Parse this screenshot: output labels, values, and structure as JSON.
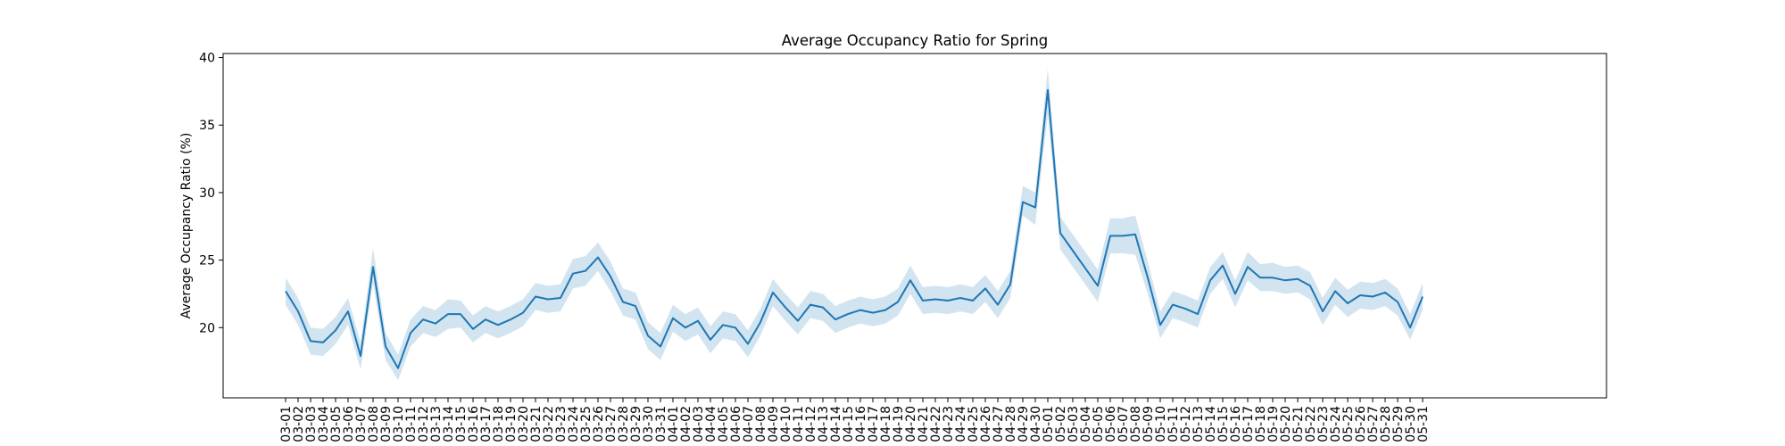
{
  "chart_data": {
    "type": "line",
    "title": "Average Occupancy Ratio for Spring",
    "xlabel": "",
    "ylabel": "Average Occupancy Ratio (%)",
    "ylim": [
      14.8,
      40.3
    ],
    "yticks": [
      20,
      25,
      30,
      35,
      40
    ],
    "grid": false,
    "legend": "none",
    "categories": [
      "03-01",
      "03-02",
      "03-03",
      "03-04",
      "03-05",
      "03-06",
      "03-07",
      "03-08",
      "03-09",
      "03-10",
      "03-11",
      "03-12",
      "03-13",
      "03-14",
      "03-15",
      "03-16",
      "03-17",
      "03-18",
      "03-19",
      "03-20",
      "03-21",
      "03-22",
      "03-23",
      "03-24",
      "03-25",
      "03-26",
      "03-27",
      "03-28",
      "03-29",
      "03-30",
      "03-31",
      "04-01",
      "04-02",
      "04-03",
      "04-04",
      "04-05",
      "04-06",
      "04-07",
      "04-08",
      "04-09",
      "04-10",
      "04-11",
      "04-12",
      "04-13",
      "04-14",
      "04-15",
      "04-16",
      "04-17",
      "04-18",
      "04-19",
      "04-20",
      "04-21",
      "04-22",
      "04-23",
      "04-24",
      "04-25",
      "04-26",
      "04-27",
      "04-28",
      "04-29",
      "04-30",
      "05-01",
      "05-02",
      "05-03",
      "05-04",
      "05-05",
      "05-06",
      "05-07",
      "05-08",
      "05-09",
      "05-10",
      "05-11",
      "05-12",
      "05-13",
      "05-14",
      "05-15",
      "05-16",
      "05-17",
      "05-18",
      "05-19",
      "05-20",
      "05-21",
      "05-22",
      "05-23",
      "05-24",
      "05-25",
      "05-26",
      "05-27",
      "05-28",
      "05-29",
      "05-30",
      "05-31"
    ],
    "series": [
      {
        "values": [
          22.7,
          21.2,
          19.0,
          18.9,
          19.8,
          21.2,
          17.9,
          24.5,
          18.6,
          17.0,
          19.6,
          20.6,
          20.3,
          21.0,
          21.0,
          19.9,
          20.6,
          20.2,
          20.6,
          21.1,
          22.3,
          22.1,
          22.2,
          24.0,
          24.2,
          25.2,
          23.8,
          21.9,
          21.6,
          19.4,
          18.6,
          20.7,
          20.0,
          20.5,
          19.1,
          20.2,
          20.0,
          18.8,
          20.4,
          22.6,
          21.5,
          20.5,
          21.7,
          21.5,
          20.6,
          21.0,
          21.3,
          21.1,
          21.3,
          21.9,
          23.5,
          22.0,
          22.1,
          22.0,
          22.2,
          22.0,
          22.9,
          21.7,
          23.2,
          29.3,
          28.9,
          37.6,
          27.0,
          25.7,
          24.4,
          23.1,
          26.8,
          26.8,
          26.9,
          23.7,
          20.2,
          21.7,
          21.4,
          21.0,
          23.5,
          24.6,
          22.5,
          24.5,
          23.7,
          23.7,
          23.5,
          23.6,
          23.1,
          21.2,
          22.7,
          21.8,
          22.4,
          22.3,
          22.6,
          21.9,
          20.0,
          22.3
        ],
        "ci_lower": [
          21.7,
          20.2,
          18.0,
          17.9,
          18.8,
          20.2,
          16.9,
          23.3,
          17.6,
          16.1,
          18.6,
          19.6,
          19.3,
          19.9,
          20.0,
          18.9,
          19.6,
          19.2,
          19.6,
          20.1,
          21.3,
          21.1,
          21.2,
          22.9,
          23.1,
          24.2,
          22.7,
          20.9,
          20.6,
          18.4,
          17.6,
          19.7,
          19.0,
          19.5,
          18.1,
          19.2,
          19.0,
          17.8,
          19.4,
          21.6,
          20.5,
          19.5,
          20.7,
          20.5,
          19.6,
          20.0,
          20.3,
          20.1,
          20.3,
          20.9,
          22.5,
          21.0,
          21.1,
          21.0,
          21.2,
          21.0,
          21.9,
          20.7,
          22.2,
          28.3,
          27.6,
          35.8,
          25.8,
          24.5,
          23.2,
          21.9,
          25.5,
          25.5,
          25.4,
          22.5,
          19.2,
          20.7,
          20.4,
          20.0,
          22.5,
          23.6,
          21.5,
          23.5,
          22.7,
          22.7,
          22.5,
          22.6,
          22.1,
          20.2,
          21.7,
          20.8,
          21.4,
          21.3,
          21.6,
          20.9,
          19.1,
          21.3
        ],
        "ci_upper": [
          23.7,
          22.2,
          20.0,
          19.9,
          20.8,
          22.2,
          18.9,
          25.9,
          19.6,
          18.0,
          20.6,
          21.6,
          21.3,
          22.1,
          22.0,
          20.9,
          21.6,
          21.2,
          21.6,
          22.1,
          23.3,
          23.1,
          23.2,
          25.1,
          25.3,
          26.3,
          24.9,
          22.9,
          22.6,
          20.4,
          19.6,
          21.7,
          21.0,
          21.5,
          20.1,
          21.2,
          21.0,
          19.8,
          21.4,
          23.6,
          22.5,
          21.5,
          22.7,
          22.5,
          21.6,
          22.0,
          22.3,
          22.1,
          22.3,
          22.9,
          24.6,
          23.0,
          23.1,
          23.0,
          23.2,
          23.0,
          23.9,
          22.7,
          24.2,
          30.5,
          30.0,
          39.2,
          28.2,
          26.9,
          25.6,
          24.3,
          28.1,
          28.1,
          28.3,
          24.9,
          21.2,
          22.7,
          22.4,
          22.0,
          24.5,
          25.6,
          23.5,
          25.6,
          24.7,
          24.8,
          24.5,
          24.6,
          24.1,
          22.2,
          23.7,
          22.8,
          23.4,
          23.3,
          23.6,
          22.9,
          21.0,
          23.3
        ]
      }
    ]
  },
  "colors": {
    "line": "#1f77b4",
    "band": "#1f77b4",
    "axes": "#000000"
  }
}
